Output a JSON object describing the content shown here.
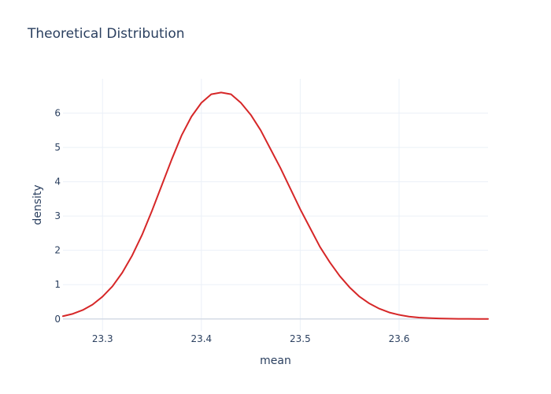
{
  "chart_data": {
    "type": "line",
    "title": "Theoretical Distribution",
    "xlabel": "mean",
    "ylabel": "density",
    "xlim": [
      23.26,
      23.69
    ],
    "ylim": [
      -0.35,
      7.0
    ],
    "xticks": [
      23.3,
      23.4,
      23.5,
      23.6
    ],
    "xtick_labels": [
      "23.3",
      "23.4",
      "23.5",
      "23.6"
    ],
    "yticks": [
      0,
      1,
      2,
      3,
      4,
      5,
      6
    ],
    "ytick_labels": [
      "0",
      "1",
      "2",
      "3",
      "4",
      "5",
      "6"
    ],
    "grid": true,
    "line_color": "#d62728",
    "series": [
      {
        "x": [
          23.26,
          23.27,
          23.28,
          23.29,
          23.3,
          23.31,
          23.32,
          23.33,
          23.34,
          23.35,
          23.36,
          23.37,
          23.38,
          23.39,
          23.4,
          23.41,
          23.42,
          23.43,
          23.44,
          23.45,
          23.46,
          23.47,
          23.48,
          23.49,
          23.5,
          23.51,
          23.52,
          23.53,
          23.54,
          23.55,
          23.56,
          23.57,
          23.58,
          23.59,
          23.6,
          23.61,
          23.62,
          23.63,
          23.64,
          23.65,
          23.66,
          23.67,
          23.68,
          23.69
        ],
        "y": [
          0.08,
          0.15,
          0.26,
          0.42,
          0.65,
          0.95,
          1.35,
          1.85,
          2.45,
          3.15,
          3.9,
          4.65,
          5.35,
          5.9,
          6.3,
          6.55,
          6.6,
          6.55,
          6.3,
          5.95,
          5.5,
          4.95,
          4.4,
          3.8,
          3.2,
          2.65,
          2.1,
          1.65,
          1.25,
          0.92,
          0.65,
          0.45,
          0.3,
          0.19,
          0.12,
          0.07,
          0.04,
          0.025,
          0.015,
          0.008,
          0.004,
          0.002,
          0.001,
          0.0005
        ]
      }
    ]
  }
}
